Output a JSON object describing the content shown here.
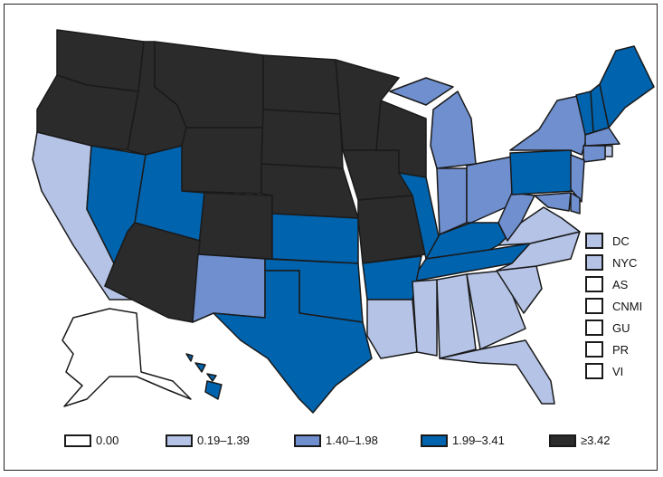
{
  "colors": {
    "c0": "#ffffff",
    "c1": "#b4c3e6",
    "c2": "#6f8fcf",
    "c3": "#0063ae",
    "c4": "#2b2b2b"
  },
  "legend": [
    {
      "label": "0.00",
      "cat": "c0"
    },
    {
      "label": "0.19–1.39",
      "cat": "c1"
    },
    {
      "label": "1.40–1.98",
      "cat": "c2"
    },
    {
      "label": "1.99–3.41",
      "cat": "c3"
    },
    {
      "label": "≥3.42",
      "cat": "c4"
    }
  ],
  "territories": [
    {
      "label": "DC",
      "cat": "c1"
    },
    {
      "label": "NYC",
      "cat": "c1"
    },
    {
      "label": "AS",
      "cat": "c0"
    },
    {
      "label": "CNMI",
      "cat": "c0"
    },
    {
      "label": "GU",
      "cat": "c0"
    },
    {
      "label": "PR",
      "cat": "c0"
    },
    {
      "label": "VI",
      "cat": "c0"
    }
  ],
  "states": {
    "WA": "c4",
    "OR": "c4",
    "ID": "c4",
    "MT": "c4",
    "WY": "c4",
    "ND": "c4",
    "SD": "c4",
    "NE": "c4",
    "MN": "c4",
    "IA": "c4",
    "WI": "c4",
    "MO": "c4",
    "AZ": "c4",
    "CO": "c4",
    "NV": "c3",
    "UT": "c3",
    "KS": "c3",
    "OK": "c3",
    "TX": "c3",
    "AR": "c3",
    "IL": "c3",
    "KY": "c3",
    "TN": "c3",
    "HI": "c3",
    "PA": "c3",
    "VT": "c3",
    "NH": "c3",
    "ME": "c3",
    "NM": "c2",
    "MI": "c2",
    "IN": "c2",
    "OH": "c2",
    "WV": "c2",
    "NY": "c2",
    "MA": "c2",
    "CT": "c2",
    "NJ": "c2",
    "DE": "c2",
    "MD": "c2",
    "CA": "c1",
    "MS": "c1",
    "AL": "c1",
    "GA": "c1",
    "SC": "c1",
    "NC": "c1",
    "VA": "c1",
    "FL": "c1",
    "LA": "c1",
    "RI": "c1",
    "AK": "c0"
  }
}
